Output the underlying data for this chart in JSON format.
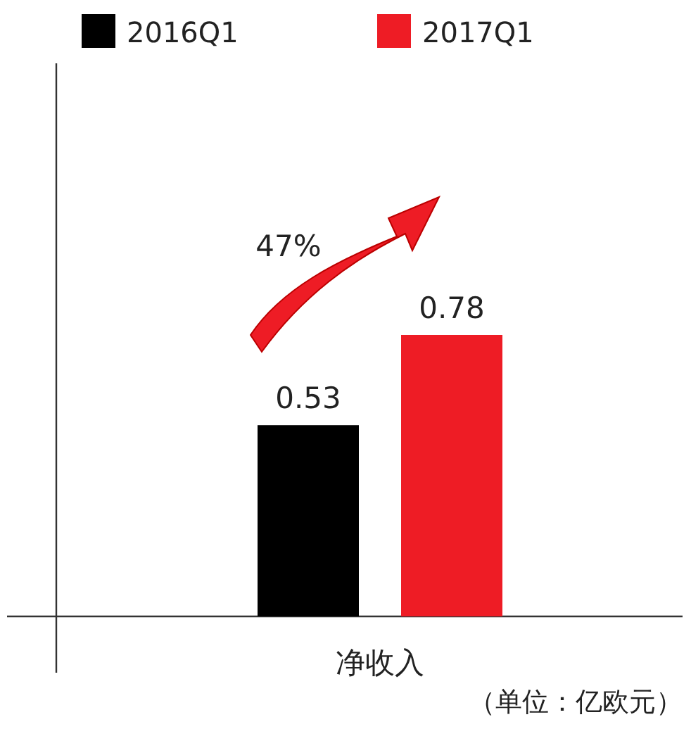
{
  "chart_data": {
    "type": "bar",
    "categories": [
      "净收入"
    ],
    "series": [
      {
        "name": "2016Q1",
        "color": "#000000",
        "values": [
          0.53
        ]
      },
      {
        "name": "2017Q1",
        "color": "#ee1c25",
        "values": [
          0.78
        ]
      }
    ],
    "data_labels": true,
    "legend": "top left",
    "annotations": [
      "47%",
      "（单位：亿欧元）"
    ]
  }
}
